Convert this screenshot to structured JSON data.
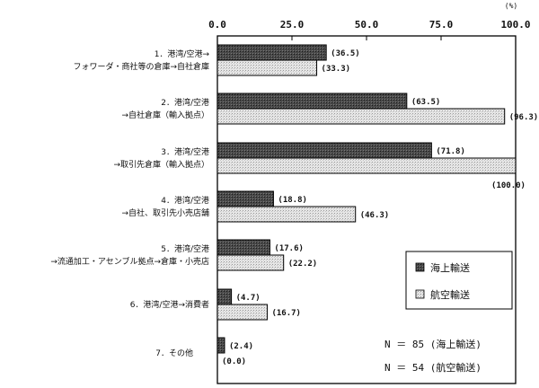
{
  "chart_data": {
    "type": "bar",
    "orientation": "horizontal",
    "unit_label": "(%)",
    "xlim": [
      0,
      100
    ],
    "x_ticks": [
      "0.0",
      "25.0",
      "50.0",
      "75.0",
      "100.0"
    ],
    "categories": [
      [
        "1．港湾/空港→",
        "フォワーダ・商社等の倉庫→自社倉庫"
      ],
      [
        "2．港湾/空港",
        "→自社倉庫（輸入拠点）"
      ],
      [
        "3．港湾/空港",
        "→取引先倉庫（輸入拠点）"
      ],
      [
        "4．港湾/空港",
        "→自社、取引先小売店舗"
      ],
      [
        "5．港湾/空港",
        "→流通加工・アセンブル拠点→倉庫・小売店"
      ],
      [
        "6．港湾/空港→消費者"
      ],
      [
        "7．その他"
      ]
    ],
    "series": [
      {
        "name": "海上輸送",
        "color": "#3c3c3c",
        "values": [
          36.5,
          63.5,
          71.8,
          18.8,
          17.6,
          4.7,
          2.4
        ],
        "labels": [
          "(36.5)",
          "(63.5)",
          "(71.8)",
          "(18.8)",
          "(17.6)",
          "(4.7)",
          "(2.4)"
        ]
      },
      {
        "name": "航空輸送",
        "color": "#dcdcdc",
        "values": [
          33.3,
          96.3,
          100.0,
          46.3,
          22.2,
          16.7,
          0.0
        ],
        "labels": [
          "(33.3)",
          "(96.3)",
          "(100.0)",
          "(46.3)",
          "(22.2)",
          "(16.7)",
          "(0.0)"
        ]
      }
    ],
    "legend": {
      "placement": "right",
      "items": [
        "海上輸送",
        "航空輸送"
      ]
    },
    "notes": [
      "N ＝ 85 (海上輸送)",
      "N ＝ 54 (航空輸送)"
    ],
    "grid": false
  }
}
